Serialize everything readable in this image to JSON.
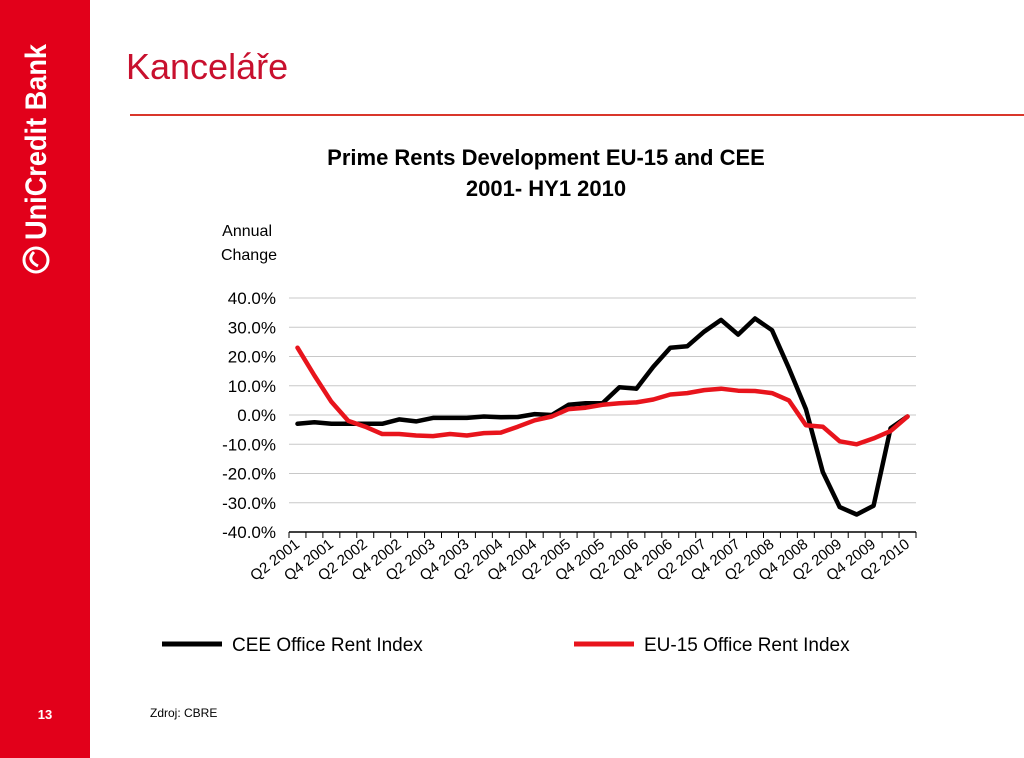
{
  "slide": {
    "title": "Kanceláře",
    "page_number": "13",
    "source": "Zdroj: CBRE",
    "brand_name": "UniCredit Bank",
    "accent_color": "#e2001a"
  },
  "chart_data": {
    "type": "line",
    "title_line1": "Prime Rents Development EU-15 and CEE",
    "title_line2": "2001- HY1 2010",
    "ylabel_line1": "Annual",
    "ylabel_line2": "Change",
    "ylim": [
      -40,
      40
    ],
    "ytick_values": [
      -40,
      -30,
      -20,
      -10,
      0,
      10,
      20,
      30,
      40
    ],
    "ytick_labels": [
      "-40.0%",
      "-30.0%",
      "-20.0%",
      "-10.0%",
      "0.0%",
      "10.0%",
      "20.0%",
      "30.0%",
      "40.0%"
    ],
    "grid": true,
    "legend_position": "bottom",
    "categories": [
      "Q2 2001",
      "Q3 2001",
      "Q4 2001",
      "Q1 2002",
      "Q2 2002",
      "Q3 2002",
      "Q4 2002",
      "Q1 2003",
      "Q2 2003",
      "Q3 2003",
      "Q4 2003",
      "Q1 2004",
      "Q2 2004",
      "Q3 2004",
      "Q4 2004",
      "Q1 2005",
      "Q2 2005",
      "Q3 2005",
      "Q4 2005",
      "Q1 2006",
      "Q2 2006",
      "Q3 2006",
      "Q4 2006",
      "Q1 2007",
      "Q2 2007",
      "Q3 2007",
      "Q4 2007",
      "Q1 2008",
      "Q2 2008",
      "Q3 2008",
      "Q4 2008",
      "Q1 2009",
      "Q2 2009",
      "Q3 2009",
      "Q4 2009",
      "Q1 2010",
      "Q2 2010"
    ],
    "xtick_labels": [
      "Q2 2001",
      "Q4 2001",
      "Q2 2002",
      "Q4 2002",
      "Q2 2003",
      "Q4 2003",
      "Q2 2004",
      "Q4 2004",
      "Q2 2005",
      "Q4 2005",
      "Q2 2006",
      "Q4 2006",
      "Q2 2007",
      "Q4 2007",
      "Q2 2008",
      "Q4 2008",
      "Q2 2009",
      "Q4 2009",
      "Q2 2010"
    ],
    "series": [
      {
        "name": "CEE Office Rent Index",
        "color": "#000000",
        "values": [
          -3,
          -2.5,
          -3,
          -3,
          -3,
          -3,
          -1.5,
          -2.2,
          -1,
          -1,
          -1,
          -0.5,
          -0.8,
          -0.7,
          0.3,
          0,
          3.5,
          4,
          4,
          9.5,
          9,
          16.5,
          23,
          23.5,
          28.5,
          32.5,
          27.5,
          33,
          29,
          16,
          2,
          -19.5,
          -31.5,
          -34,
          -31,
          -4.5,
          -0.5
        ]
      },
      {
        "name": "EU-15 Office Rent Index",
        "color": "#e8141c",
        "values": [
          23,
          13.5,
          4.5,
          -2,
          -4,
          -6.5,
          -6.5,
          -7,
          -7.2,
          -6.5,
          -7,
          -6.2,
          -6,
          -4,
          -1.8,
          -0.5,
          2,
          2.5,
          3.5,
          4,
          4.3,
          5.3,
          7,
          7.5,
          8.5,
          9,
          8.3,
          8.2,
          7.5,
          5,
          -3.5,
          -4,
          -9,
          -10,
          -8,
          -5.5,
          -0.5
        ]
      }
    ]
  }
}
